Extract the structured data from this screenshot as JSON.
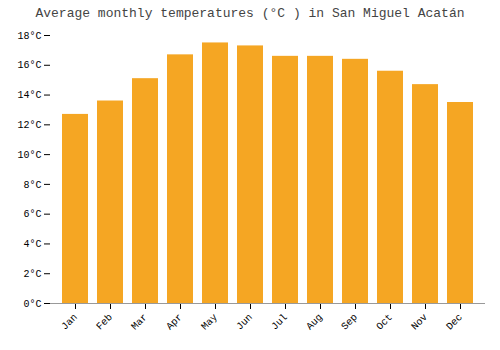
{
  "chart_data": {
    "type": "bar",
    "title": "Average monthly temperatures (°C ) in San Miguel Acatán",
    "categories": [
      "Jan",
      "Feb",
      "Mar",
      "Apr",
      "May",
      "Jun",
      "Jul",
      "Aug",
      "Sep",
      "Oct",
      "Nov",
      "Dec"
    ],
    "values": [
      12.7,
      13.6,
      15.1,
      16.7,
      17.5,
      17.3,
      16.6,
      16.6,
      16.4,
      15.6,
      14.7,
      13.5
    ],
    "color": "#F5A623",
    "ylim": [
      0,
      18
    ],
    "yticks": [
      {
        "value": 0,
        "label": "0°C"
      },
      {
        "value": 2,
        "label": "2°C"
      },
      {
        "value": 4,
        "label": "4°C"
      },
      {
        "value": 6,
        "label": "6°C"
      },
      {
        "value": 8,
        "label": "8°C"
      },
      {
        "value": 10,
        "label": "10°C"
      },
      {
        "value": 12,
        "label": "12°C"
      },
      {
        "value": 14,
        "label": "14°C"
      },
      {
        "value": 16,
        "label": "16°C"
      },
      {
        "value": 18,
        "label": "18°C"
      }
    ],
    "grid": false
  }
}
